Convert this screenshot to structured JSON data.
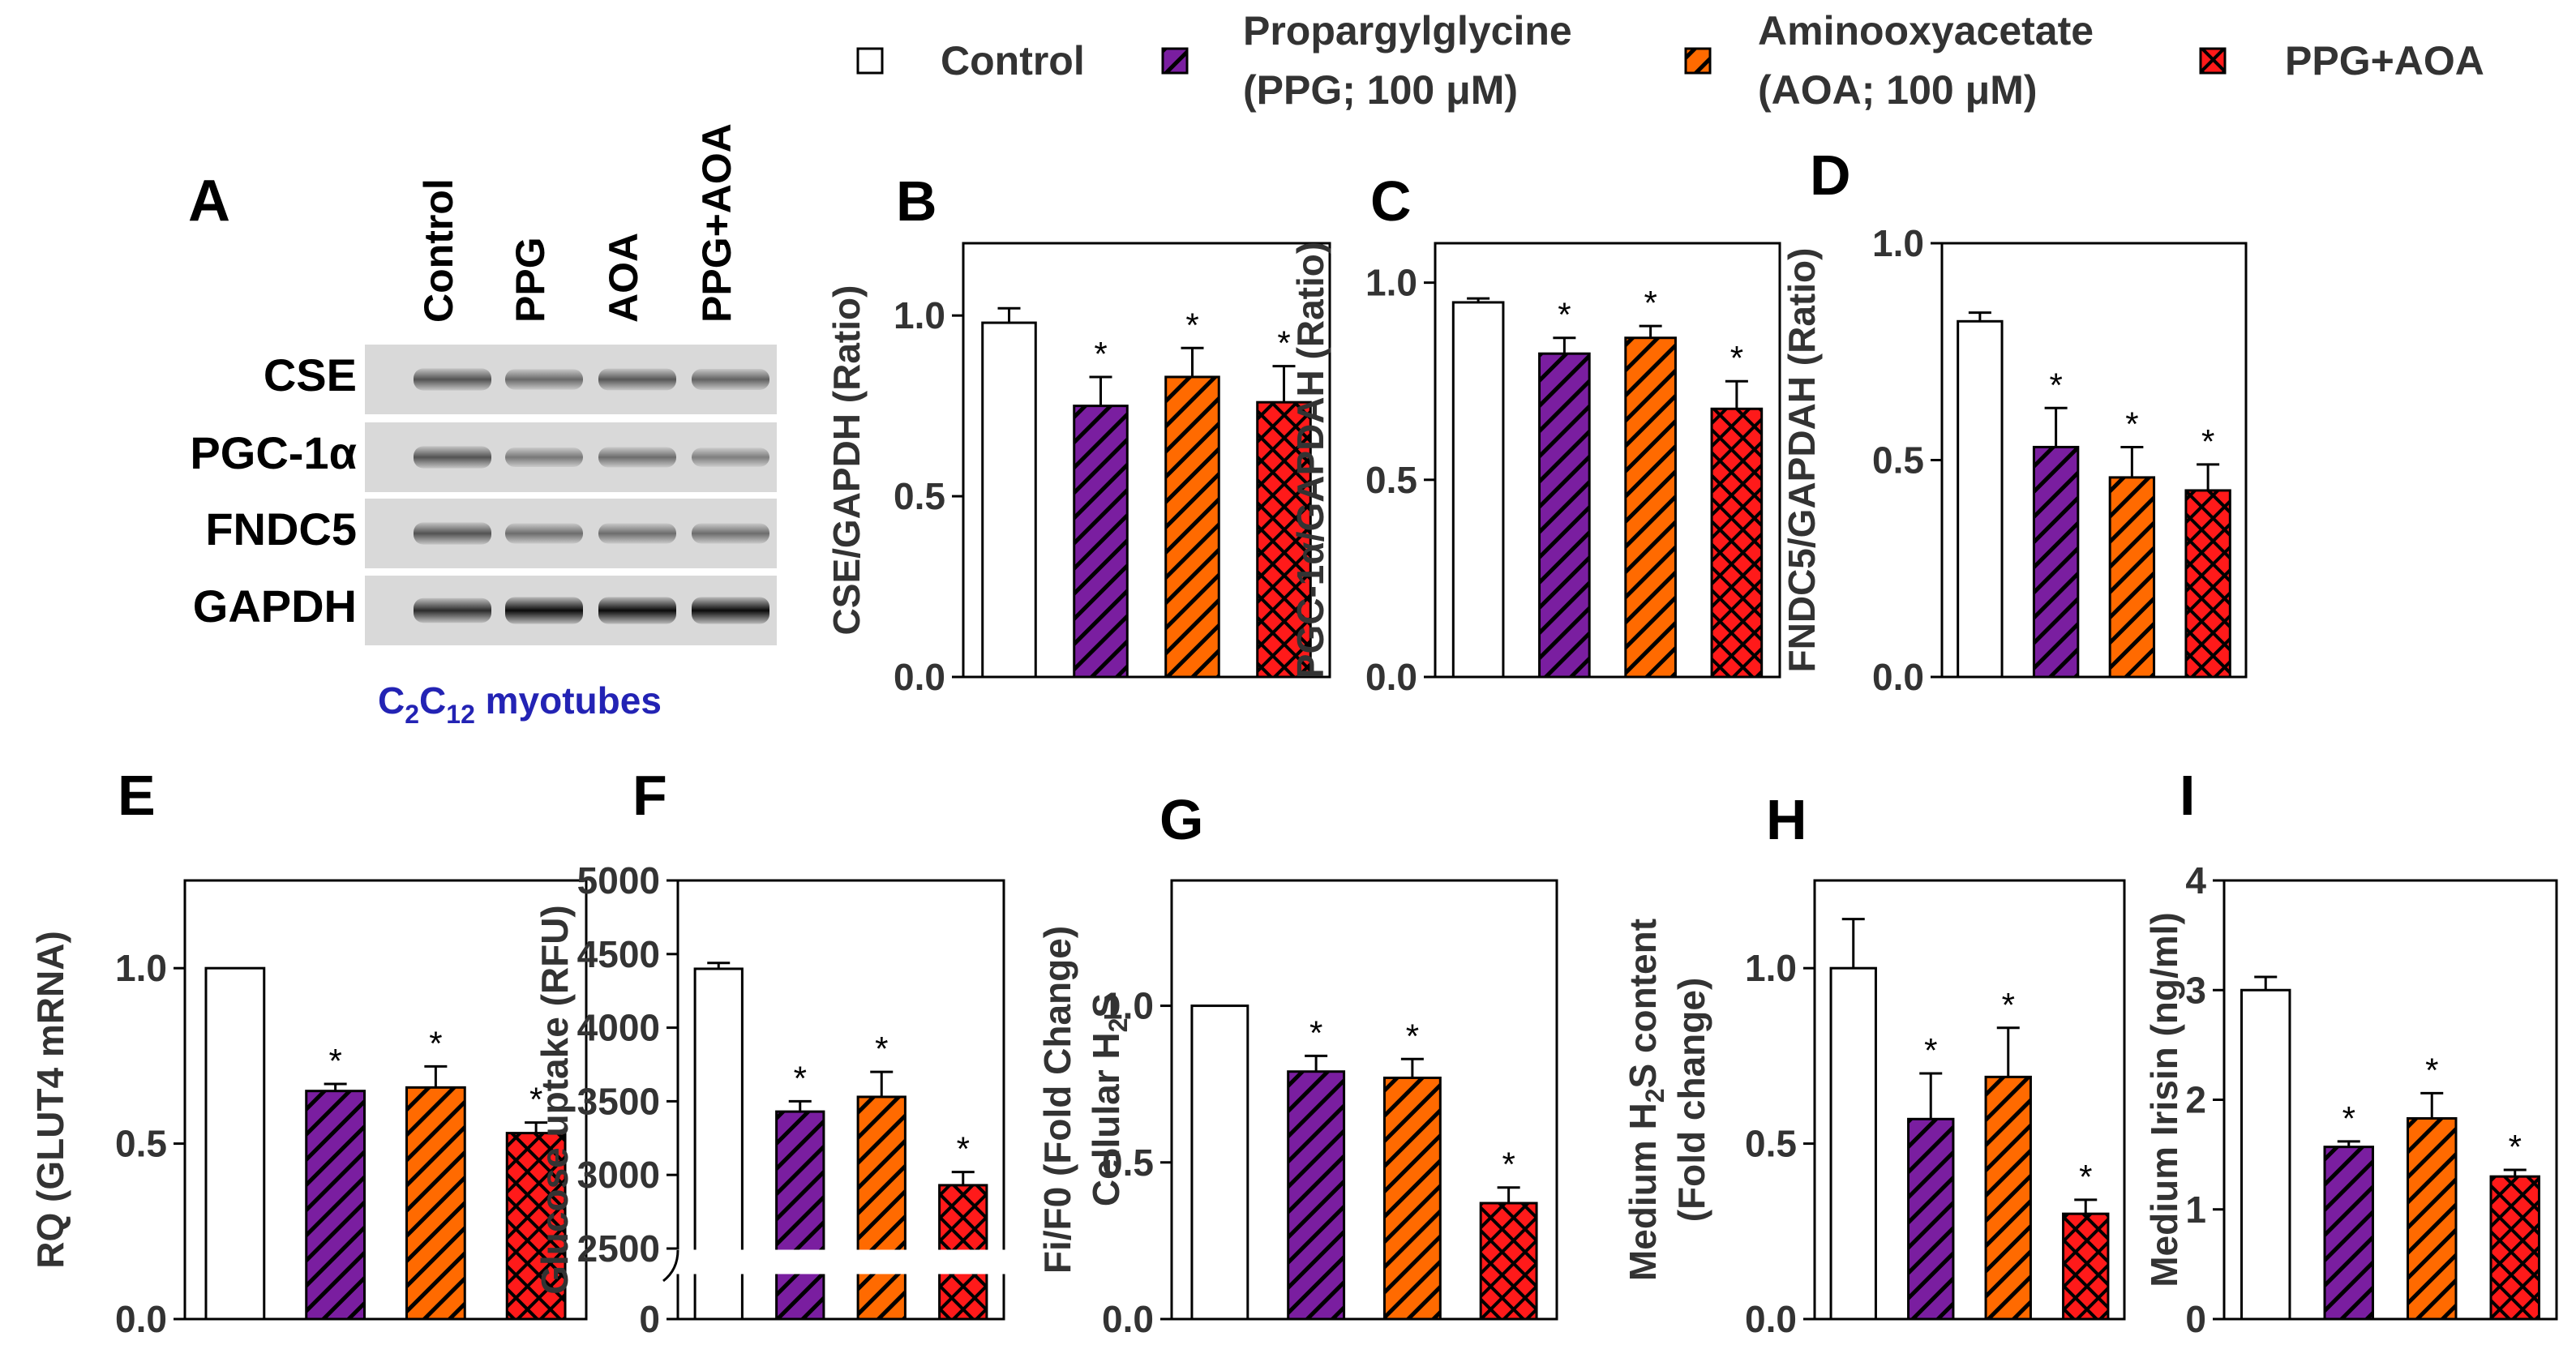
{
  "legend": {
    "items": [
      {
        "lines": [
          "Control"
        ],
        "pattern": "none",
        "color": "#ffffff"
      },
      {
        "lines": [
          "Propargylglycine",
          "(PPG; 100 μM)"
        ],
        "pattern": "hatch",
        "color": "#7a1ea0"
      },
      {
        "lines": [
          "Aminooxyacetate",
          "(AOA; 100 μM)"
        ],
        "pattern": "hatch",
        "color": "#ff6a00"
      },
      {
        "lines": [
          "PPG+AOA"
        ],
        "pattern": "cross",
        "color": "#ff1a1a"
      }
    ]
  },
  "blot": {
    "panel_letter": "A",
    "lane_labels": [
      "Control",
      "PPG",
      "AOA",
      "PPG+AOA"
    ],
    "rows": [
      {
        "label": "CSE",
        "band_intensity": [
          0.62,
          0.52,
          0.6,
          0.55
        ]
      },
      {
        "label": "PGC-1α",
        "band_intensity": [
          0.62,
          0.45,
          0.5,
          0.42
        ]
      },
      {
        "label": "FNDC5",
        "band_intensity": [
          0.62,
          0.5,
          0.5,
          0.5
        ]
      },
      {
        "label": "GAPDH",
        "band_intensity": [
          0.8,
          0.95,
          0.95,
          0.95
        ]
      }
    ],
    "caption": {
      "c1": "C",
      "s1": "2",
      "c2": "C",
      "s2": "12",
      "rest": " myotubes"
    },
    "caption_color": "#2323b4"
  },
  "chart_data": [
    {
      "id": "B",
      "type": "bar",
      "categories": [
        "Control",
        "PPG",
        "AOA",
        "PPG+AOA"
      ],
      "values": [
        0.98,
        0.75,
        0.83,
        0.76
      ],
      "errors": [
        0.04,
        0.08,
        0.08,
        0.1
      ],
      "sig": [
        "",
        "*",
        "*",
        "*"
      ],
      "ylabel": "CSE/GAPDH (Ratio)",
      "ylim": [
        0,
        1.2
      ],
      "yticks": [
        {
          "v": 0,
          "t": "0.0"
        },
        {
          "v": 0.5,
          "t": "0.5"
        },
        {
          "v": 1,
          "t": "1.0"
        }
      ]
    },
    {
      "id": "C",
      "type": "bar",
      "categories": [
        "Control",
        "PPG",
        "AOA",
        "PPG+AOA"
      ],
      "values": [
        0.95,
        0.82,
        0.86,
        0.68
      ],
      "errors": [
        0.01,
        0.04,
        0.03,
        0.07
      ],
      "sig": [
        "",
        "*",
        "*",
        "*"
      ],
      "ylabel": "PGC-1α/GAPDAH (Ratio)",
      "ylim": [
        0,
        1.1
      ],
      "yticks": [
        {
          "v": 0,
          "t": "0.0"
        },
        {
          "v": 0.5,
          "t": "0.5"
        },
        {
          "v": 1,
          "t": "1.0"
        }
      ]
    },
    {
      "id": "D",
      "type": "bar",
      "categories": [
        "Control",
        "PPG",
        "AOA",
        "PPG+AOA"
      ],
      "values": [
        0.82,
        0.53,
        0.46,
        0.43
      ],
      "errors": [
        0.02,
        0.09,
        0.07,
        0.06
      ],
      "sig": [
        "",
        "*",
        "*",
        "*"
      ],
      "ylabel": "FNDC5/GAPDAH (Ratio)",
      "ylim": [
        0,
        1.0
      ],
      "yticks": [
        {
          "v": 0,
          "t": "0.0"
        },
        {
          "v": 0.5,
          "t": "0.5"
        },
        {
          "v": 1,
          "t": "1.0"
        }
      ]
    },
    {
      "id": "E",
      "type": "bar",
      "categories": [
        "Control",
        "PPG",
        "AOA",
        "PPG+AOA"
      ],
      "values": [
        1.0,
        0.65,
        0.66,
        0.53
      ],
      "errors": [
        0,
        0.02,
        0.06,
        0.03
      ],
      "sig": [
        "",
        "*",
        "*",
        "*"
      ],
      "ylabel": "RQ (GLUT4 mRNA)",
      "ylim": [
        0,
        1.25
      ],
      "yticks": [
        {
          "v": 0,
          "t": "0.0"
        },
        {
          "v": 0.5,
          "t": "0.5"
        },
        {
          "v": 1,
          "t": "1.0"
        }
      ]
    },
    {
      "id": "F",
      "type": "bar",
      "categories": [
        "Control",
        "PPG",
        "AOA",
        "PPG+AOA"
      ],
      "values": [
        4400,
        3430,
        3530,
        2930
      ],
      "errors": [
        40,
        70,
        170,
        90
      ],
      "sig": [
        "",
        "*",
        "*",
        "*"
      ],
      "ylabel": "Glucose uptake (RFU)",
      "ylim": [
        2500,
        5000
      ],
      "broken_axis": {
        "low": [
          0,
          400
        ],
        "low_ticks": [
          {
            "v": 0,
            "t": "0"
          }
        ]
      },
      "yticks": [
        {
          "v": 2500,
          "t": "2500"
        },
        {
          "v": 3000,
          "t": "3000"
        },
        {
          "v": 3500,
          "t": "3500"
        },
        {
          "v": 4000,
          "t": "4000"
        },
        {
          "v": 4500,
          "t": "4500"
        },
        {
          "v": 5000,
          "t": "5000"
        }
      ]
    },
    {
      "id": "G",
      "type": "bar",
      "categories": [
        "Control",
        "PPG",
        "AOA",
        "PPG+AOA"
      ],
      "values": [
        1.0,
        0.79,
        0.77,
        0.37
      ],
      "errors": [
        0,
        0.05,
        0.06,
        0.05
      ],
      "sig": [
        "",
        "*",
        "*",
        "*"
      ],
      "ylabel": "Fi/F0 (Fold Change)",
      "ylabel2": {
        "pre": "Cellular H",
        "sub": "2",
        "post": "S"
      },
      "ylim": [
        0,
        1.4
      ],
      "yticks": [
        {
          "v": 0,
          "t": "0.0"
        },
        {
          "v": 0.5,
          "t": "0.5"
        },
        {
          "v": 1,
          "t": "1.0"
        }
      ]
    },
    {
      "id": "H",
      "type": "bar",
      "categories": [
        "Control",
        "PPG",
        "AOA",
        "PPG+AOA"
      ],
      "values": [
        1.0,
        0.57,
        0.69,
        0.3
      ],
      "errors": [
        0.14,
        0.13,
        0.14,
        0.04
      ],
      "sig": [
        "",
        "*",
        "*",
        "*"
      ],
      "ylabel": {
        "pre": "Medium H",
        "sub": "2",
        "post": "S content"
      },
      "ylabel2": "(Fold change)",
      "ylim": [
        0,
        1.25
      ],
      "yticks": [
        {
          "v": 0,
          "t": "0.0"
        },
        {
          "v": 0.5,
          "t": "0.5"
        },
        {
          "v": 1,
          "t": "1.0"
        }
      ]
    },
    {
      "id": "I",
      "type": "bar",
      "categories": [
        "Control",
        "PPG",
        "AOA",
        "PPG+AOA"
      ],
      "values": [
        3.0,
        1.57,
        1.83,
        1.3
      ],
      "errors": [
        0.12,
        0.05,
        0.23,
        0.06
      ],
      "sig": [
        "",
        "*",
        "*",
        "*"
      ],
      "ylabel": "Medium Irisin (ng/ml)",
      "ylim": [
        0,
        4
      ],
      "yticks": [
        {
          "v": 0,
          "t": "0"
        },
        {
          "v": 1,
          "t": "1"
        },
        {
          "v": 2,
          "t": "2"
        },
        {
          "v": 3,
          "t": "3"
        },
        {
          "v": 4,
          "t": "4"
        }
      ]
    }
  ]
}
